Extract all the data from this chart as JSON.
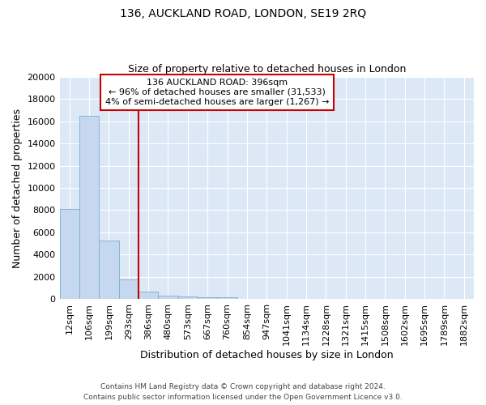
{
  "title": "136, AUCKLAND ROAD, LONDON, SE19 2RQ",
  "subtitle": "Size of property relative to detached houses in London",
  "xlabel": "Distribution of detached houses by size in London",
  "ylabel": "Number of detached properties",
  "footer_line1": "Contains HM Land Registry data © Crown copyright and database right 2024.",
  "footer_line2": "Contains public sector information licensed under the Open Government Licence v3.0.",
  "categories": [
    "12sqm",
    "106sqm",
    "199sqm",
    "293sqm",
    "386sqm",
    "480sqm",
    "573sqm",
    "667sqm",
    "760sqm",
    "854sqm",
    "947sqm",
    "1041sqm",
    "1134sqm",
    "1228sqm",
    "1321sqm",
    "1415sqm",
    "1508sqm",
    "1602sqm",
    "1695sqm",
    "1789sqm",
    "1882sqm"
  ],
  "bar_values": [
    8100,
    16500,
    5300,
    1800,
    700,
    350,
    280,
    200,
    200,
    0,
    0,
    0,
    0,
    0,
    0,
    0,
    0,
    0,
    0,
    0,
    0
  ],
  "bar_color": "#c5d8ef",
  "bar_edge_color": "#7aadd4",
  "vline_x": 3.5,
  "vline_color": "#cc0000",
  "annotation_text": "136 AUCKLAND ROAD: 396sqm\n← 96% of detached houses are smaller (31,533)\n4% of semi-detached houses are larger (1,267) →",
  "annotation_box_color": "#cc0000",
  "annotation_text_color": "#000000",
  "ylim": [
    0,
    20000
  ],
  "yticks": [
    0,
    2000,
    4000,
    6000,
    8000,
    10000,
    12000,
    14000,
    16000,
    18000,
    20000
  ],
  "bg_color": "#dce8f5",
  "grid_color": "#ffffff",
  "title_fontsize": 10,
  "subtitle_fontsize": 9,
  "axis_label_fontsize": 9,
  "tick_fontsize": 8,
  "annotation_fontsize": 8,
  "footer_fontsize": 6.5
}
